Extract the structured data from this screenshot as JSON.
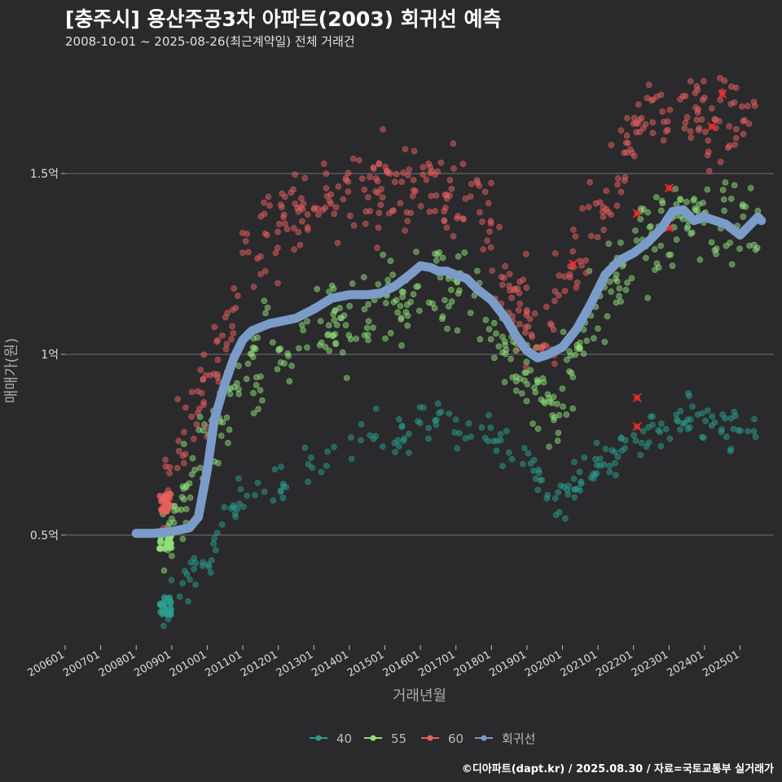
{
  "title": "[충주시] 용산주공3차 아파트(2003) 회귀선 예측",
  "subtitle": "2008-10-01 ~ 2025-08-26(최근계약일) 전체 거래건",
  "credit": "©디아파트(dapt.kr) / 2025.08.30 / 자료=국토교통부 실거래가",
  "colors": {
    "background": "#2a2a2c",
    "grid": "#5a5a5a",
    "s40": "#2a9d8f",
    "s55": "#90e07a",
    "s60": "#e85f5f",
    "regression": "#7b9cc8",
    "highlight": "#ff2d2d"
  },
  "chart_data": {
    "type": "scatter",
    "title": "[충주시] 용산주공3차 아파트(2003) 회귀선 예측",
    "xlabel": "거래년월",
    "ylabel": "매매가(원)",
    "xlim": [
      2006.0,
      2025.95
    ],
    "ylim": [
      0.2,
      1.8
    ],
    "y_unit": "억",
    "x_ticks": [
      "200601",
      "200701",
      "200801",
      "200901",
      "201001",
      "201101",
      "201201",
      "201301",
      "201401",
      "201501",
      "201601",
      "201701",
      "201801",
      "201901",
      "202001",
      "202101",
      "202201",
      "202301",
      "202401",
      "202501"
    ],
    "y_ticks": [
      {
        "value": 0.5,
        "label": "0.5억"
      },
      {
        "value": 1.0,
        "label": "1억"
      },
      {
        "value": 1.5,
        "label": "1.5억"
      }
    ],
    "legend": {
      "position": "bottom",
      "entries": [
        "40",
        "55",
        "60",
        "회귀선"
      ]
    },
    "series": [
      {
        "name": "40",
        "type": "scatter",
        "band": [
          [
            2008.75,
            0.3
          ],
          [
            2009.0,
            0.32
          ],
          [
            2009.5,
            0.38
          ],
          [
            2010.0,
            0.45
          ],
          [
            2010.5,
            0.55
          ],
          [
            2011.0,
            0.63
          ],
          [
            2011.5,
            0.65
          ],
          [
            2012.0,
            0.64
          ],
          [
            2012.5,
            0.67
          ],
          [
            2013.0,
            0.69
          ],
          [
            2013.5,
            0.72
          ],
          [
            2014.0,
            0.75
          ],
          [
            2014.5,
            0.78
          ],
          [
            2015.0,
            0.79
          ],
          [
            2015.5,
            0.79
          ],
          [
            2016.0,
            0.8
          ],
          [
            2016.5,
            0.81
          ],
          [
            2017.0,
            0.81
          ],
          [
            2017.5,
            0.79
          ],
          [
            2018.0,
            0.76
          ],
          [
            2018.5,
            0.74
          ],
          [
            2019.0,
            0.7
          ],
          [
            2019.5,
            0.62
          ],
          [
            2020.0,
            0.61
          ],
          [
            2020.5,
            0.65
          ],
          [
            2021.0,
            0.69
          ],
          [
            2021.5,
            0.72
          ],
          [
            2022.0,
            0.74
          ],
          [
            2022.5,
            0.77
          ],
          [
            2023.0,
            0.8
          ],
          [
            2023.5,
            0.82
          ],
          [
            2024.0,
            0.81
          ],
          [
            2024.5,
            0.8
          ],
          [
            2025.0,
            0.8
          ],
          [
            2025.5,
            0.8
          ]
        ]
      },
      {
        "name": "55",
        "type": "scatter",
        "band": [
          [
            2008.75,
            0.47
          ],
          [
            2009.0,
            0.55
          ],
          [
            2009.5,
            0.65
          ],
          [
            2010.0,
            0.73
          ],
          [
            2010.5,
            0.84
          ],
          [
            2011.0,
            0.93
          ],
          [
            2011.5,
            0.98
          ],
          [
            2012.0,
            1.02
          ],
          [
            2012.5,
            1.04
          ],
          [
            2013.0,
            1.06
          ],
          [
            2013.5,
            1.08
          ],
          [
            2014.0,
            1.1
          ],
          [
            2014.5,
            1.13
          ],
          [
            2015.0,
            1.15
          ],
          [
            2015.5,
            1.16
          ],
          [
            2016.0,
            1.17
          ],
          [
            2016.5,
            1.17
          ],
          [
            2017.0,
            1.16
          ],
          [
            2017.5,
            1.13
          ],
          [
            2018.0,
            1.07
          ],
          [
            2018.5,
            1.0
          ],
          [
            2019.0,
            0.93
          ],
          [
            2019.5,
            0.87
          ],
          [
            2020.0,
            0.9
          ],
          [
            2020.5,
            1.02
          ],
          [
            2021.0,
            1.12
          ],
          [
            2021.5,
            1.2
          ],
          [
            2022.0,
            1.27
          ],
          [
            2022.5,
            1.33
          ],
          [
            2023.0,
            1.37
          ],
          [
            2023.5,
            1.38
          ],
          [
            2024.0,
            1.34
          ],
          [
            2024.5,
            1.33
          ],
          [
            2025.0,
            1.35
          ],
          [
            2025.5,
            1.38
          ]
        ]
      },
      {
        "name": "60",
        "type": "scatter",
        "band": [
          [
            2008.75,
            0.56
          ],
          [
            2009.0,
            0.7
          ],
          [
            2009.5,
            0.82
          ],
          [
            2010.0,
            0.88
          ],
          [
            2010.5,
            1.05
          ],
          [
            2011.0,
            1.25
          ],
          [
            2011.5,
            1.32
          ],
          [
            2012.0,
            1.36
          ],
          [
            2012.5,
            1.38
          ],
          [
            2013.0,
            1.39
          ],
          [
            2013.5,
            1.4
          ],
          [
            2014.0,
            1.42
          ],
          [
            2014.5,
            1.44
          ],
          [
            2015.0,
            1.46
          ],
          [
            2015.5,
            1.46
          ],
          [
            2016.0,
            1.46
          ],
          [
            2016.5,
            1.46
          ],
          [
            2017.0,
            1.45
          ],
          [
            2017.5,
            1.4
          ],
          [
            2018.0,
            1.32
          ],
          [
            2018.5,
            1.2
          ],
          [
            2019.0,
            1.1
          ],
          [
            2019.5,
            1.06
          ],
          [
            2020.0,
            1.18
          ],
          [
            2020.5,
            1.3
          ],
          [
            2021.0,
            1.4
          ],
          [
            2021.5,
            1.5
          ],
          [
            2022.0,
            1.6
          ],
          [
            2022.5,
            1.66
          ],
          [
            2023.0,
            1.65
          ],
          [
            2023.5,
            1.66
          ],
          [
            2024.0,
            1.67
          ],
          [
            2024.5,
            1.65
          ],
          [
            2025.0,
            1.68
          ],
          [
            2025.5,
            1.68
          ]
        ]
      },
      {
        "name": "회귀선",
        "type": "line",
        "points": [
          [
            2008.0,
            0.505
          ],
          [
            2008.5,
            0.505
          ],
          [
            2009.0,
            0.51
          ],
          [
            2009.5,
            0.52
          ],
          [
            2009.75,
            0.55
          ],
          [
            2010.0,
            0.68
          ],
          [
            2010.2,
            0.82
          ],
          [
            2010.5,
            0.92
          ],
          [
            2010.75,
            0.99
          ],
          [
            2011.0,
            1.04
          ],
          [
            2011.25,
            1.065
          ],
          [
            2011.5,
            1.075
          ],
          [
            2011.75,
            1.085
          ],
          [
            2012.0,
            1.09
          ],
          [
            2012.5,
            1.1
          ],
          [
            2013.0,
            1.125
          ],
          [
            2013.5,
            1.155
          ],
          [
            2014.0,
            1.165
          ],
          [
            2014.5,
            1.165
          ],
          [
            2014.9,
            1.17
          ],
          [
            2015.3,
            1.19
          ],
          [
            2015.7,
            1.22
          ],
          [
            2016.0,
            1.245
          ],
          [
            2016.3,
            1.24
          ],
          [
            2016.5,
            1.23
          ],
          [
            2016.75,
            1.23
          ],
          [
            2017.0,
            1.22
          ],
          [
            2017.3,
            1.21
          ],
          [
            2017.6,
            1.18
          ],
          [
            2018.0,
            1.15
          ],
          [
            2018.4,
            1.1
          ],
          [
            2018.7,
            1.05
          ],
          [
            2019.0,
            1.01
          ],
          [
            2019.3,
            0.99
          ],
          [
            2019.6,
            1.0
          ],
          [
            2020.0,
            1.02
          ],
          [
            2020.4,
            1.07
          ],
          [
            2020.8,
            1.14
          ],
          [
            2021.2,
            1.22
          ],
          [
            2021.6,
            1.26
          ],
          [
            2022.0,
            1.28
          ],
          [
            2022.4,
            1.31
          ],
          [
            2022.8,
            1.35
          ],
          [
            2023.1,
            1.395
          ],
          [
            2023.4,
            1.4
          ],
          [
            2023.7,
            1.37
          ],
          [
            2024.0,
            1.38
          ],
          [
            2024.3,
            1.37
          ],
          [
            2024.6,
            1.36
          ],
          [
            2025.0,
            1.33
          ],
          [
            2025.3,
            1.36
          ],
          [
            2025.5,
            1.38
          ],
          [
            2025.6,
            1.37
          ]
        ]
      }
    ],
    "highlighted": [
      [
        2022.1,
        0.88
      ],
      [
        2022.1,
        0.8
      ],
      [
        2022.1,
        1.39
      ],
      [
        2023.0,
        1.46
      ],
      [
        2023.0,
        1.35
      ],
      [
        2024.2,
        1.63
      ],
      [
        2024.5,
        1.72
      ],
      [
        2020.3,
        1.25
      ]
    ]
  }
}
